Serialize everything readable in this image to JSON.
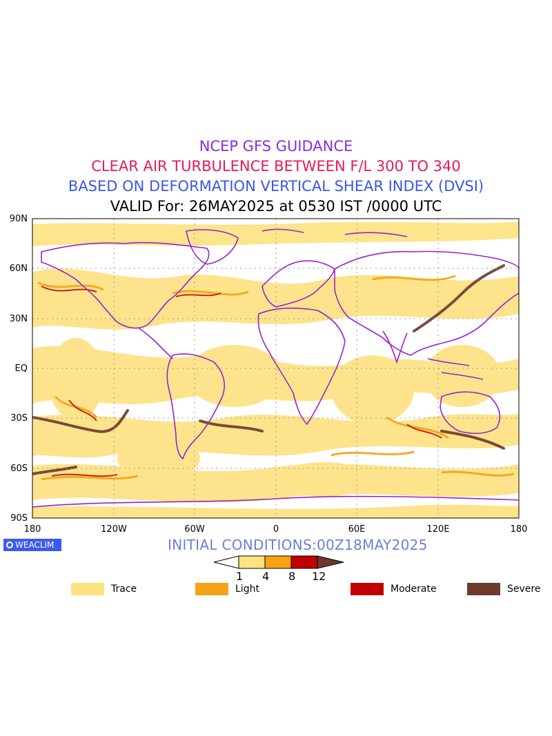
{
  "titles": {
    "line1": "NCEP GFS GUIDANCE",
    "line2": "CLEAR AIR TURBULENCE BETWEEN F/L 300 TO 340",
    "line3": "BASED ON DEFORMATION VERTICAL SHEAR INDEX (DVSI)",
    "line4": "VALID For: 26MAY2025 at 0530 IST /0000 UTC"
  },
  "colors": {
    "line1": "#8a2be2",
    "line2": "#e8195b",
    "line3": "#3b55e6",
    "trace": "#fde280",
    "light": "#f6a116",
    "moderate": "#c00000",
    "severe": "#6b3a2c",
    "coast": "#9a1fd0"
  },
  "axes": {
    "lat_labels": [
      "90N",
      "60N",
      "30N",
      "EQ",
      "30S",
      "60S",
      "90S"
    ],
    "lon_labels": [
      "180",
      "120W",
      "60W",
      "0",
      "60E",
      "120E",
      "180"
    ]
  },
  "logo": {
    "text": "WEACLIM",
    "icon": "circle-logo-icon"
  },
  "initial_conditions": "INITIAL CONDITIONS:00Z18MAY2025",
  "colorbar": {
    "ticks": [
      "1",
      "4",
      "8",
      "12"
    ]
  },
  "legend": [
    {
      "label": "Trace"
    },
    {
      "label": "Light"
    },
    {
      "label": "Moderate"
    },
    {
      "label": "Severe"
    }
  ]
}
